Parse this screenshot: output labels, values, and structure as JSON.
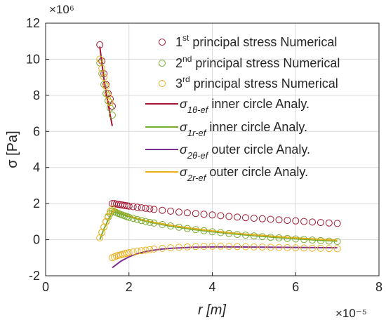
{
  "chart_data": {
    "type": "scatter",
    "xlabel": "r [m]",
    "ylabel": "σ [Pa]",
    "x_exponent_label": "×10⁻⁵",
    "y_exponent_label": "×10⁶",
    "xlim": [
      0,
      8
    ],
    "ylim": [
      -2,
      12
    ],
    "x_ticks": [
      "0",
      "2",
      "4",
      "6",
      "8"
    ],
    "y_ticks": [
      "-2",
      "0",
      "2",
      "4",
      "6",
      "8",
      "10",
      "12"
    ],
    "grid": true,
    "legend_position": "top-right",
    "series": [
      {
        "name": "1st principal stress Numerical",
        "legend": {
          "pre": "1",
          "sup": "st",
          "post": " principal stress Numerical"
        },
        "kind": "markers",
        "color": "#a2142f",
        "x": [
          1.3,
          1.35,
          1.4,
          1.45,
          1.5,
          1.55,
          1.6,
          1.6,
          1.65,
          1.7,
          1.75,
          1.8,
          1.85,
          1.9,
          1.95,
          2.0,
          2.1,
          2.2,
          2.3,
          2.4,
          2.5,
          2.6,
          2.8,
          3.0,
          3.2,
          3.4,
          3.6,
          3.8,
          4.0,
          4.2,
          4.4,
          4.6,
          4.8,
          5.0,
          5.2,
          5.4,
          5.6,
          5.8,
          6.0,
          6.2,
          6.4,
          6.6,
          6.8,
          7.0
        ],
        "y": [
          10.8,
          9.9,
          9.2,
          8.6,
          8.1,
          7.8,
          7.4,
          2.0,
          2.0,
          1.98,
          1.96,
          1.94,
          1.92,
          1.9,
          1.88,
          1.86,
          1.83,
          1.8,
          1.77,
          1.74,
          1.71,
          1.68,
          1.63,
          1.58,
          1.53,
          1.49,
          1.45,
          1.41,
          1.37,
          1.33,
          1.29,
          1.25,
          1.22,
          1.19,
          1.16,
          1.13,
          1.1,
          1.07,
          1.04,
          1.01,
          0.98,
          0.95,
          0.93,
          0.9
        ]
      },
      {
        "name": "2nd principal stress Numerical",
        "legend": {
          "pre": "2",
          "sup": "nd",
          "post": " principal stress  Numerical"
        },
        "kind": "markers",
        "color": "#77ac30",
        "x": [
          1.3,
          1.35,
          1.4,
          1.45,
          1.5,
          1.55,
          1.6,
          1.35,
          1.4,
          1.45,
          1.5,
          1.55,
          1.6,
          1.65,
          1.7,
          1.75,
          1.8,
          1.85,
          1.9,
          1.95,
          2.0,
          2.1,
          2.2,
          2.3,
          2.4,
          2.5,
          2.6,
          2.8,
          3.0,
          3.2,
          3.4,
          3.6,
          3.8,
          4.0,
          4.2,
          4.4,
          4.6,
          4.8,
          5.0,
          5.2,
          5.4,
          5.6,
          5.8,
          6.0,
          6.2,
          6.4,
          6.6,
          6.8,
          7.0
        ],
        "y": [
          9.8,
          9.2,
          8.6,
          8.1,
          7.7,
          7.3,
          6.9,
          0.4,
          0.7,
          1.0,
          1.25,
          1.45,
          1.6,
          1.55,
          1.5,
          1.45,
          1.4,
          1.36,
          1.32,
          1.28,
          1.24,
          1.18,
          1.12,
          1.06,
          1.01,
          0.96,
          0.92,
          0.84,
          0.76,
          0.69,
          0.62,
          0.56,
          0.5,
          0.44,
          0.39,
          0.34,
          0.29,
          0.25,
          0.21,
          0.17,
          0.13,
          0.1,
          0.07,
          0.04,
          0.01,
          -0.02,
          -0.05,
          -0.08,
          -0.1
        ]
      },
      {
        "name": "3rd principal stress Numerical",
        "legend": {
          "pre": "3",
          "sup": "rd",
          "post": " principal stress  Numerical"
        },
        "kind": "markers",
        "color": "#edb120",
        "x": [
          1.3,
          1.35,
          1.4,
          1.45,
          1.5,
          1.55,
          1.3,
          1.35,
          1.4,
          1.45,
          1.5,
          1.55,
          1.6,
          1.6,
          1.65,
          1.7,
          1.75,
          1.8,
          1.85,
          1.9,
          1.95,
          2.0,
          2.1,
          2.2,
          2.3,
          2.4,
          2.5,
          2.6,
          2.8,
          3.0,
          3.2,
          3.4,
          3.6,
          3.8,
          4.0,
          4.2,
          4.4,
          4.6,
          4.8,
          5.0,
          5.2,
          5.4,
          5.6,
          5.8,
          6.0,
          6.2,
          6.4,
          6.6,
          6.8,
          7.0
        ],
        "y": [
          10.0,
          9.5,
          9.0,
          8.5,
          8.0,
          7.6,
          0.1,
          0.4,
          0.7,
          1.0,
          1.3,
          1.55,
          1.7,
          -1.0,
          -0.95,
          -0.9,
          -0.87,
          -0.84,
          -0.81,
          -0.78,
          -0.75,
          -0.72,
          -0.68,
          -0.64,
          -0.61,
          -0.58,
          -0.55,
          -0.52,
          -0.48,
          -0.45,
          -0.42,
          -0.4,
          -0.38,
          -0.37,
          -0.36,
          -0.36,
          -0.37,
          -0.38,
          -0.39,
          -0.4,
          -0.41,
          -0.42,
          -0.43,
          -0.44,
          -0.45,
          -0.46,
          -0.47,
          -0.48,
          -0.49,
          -0.5
        ]
      },
      {
        "name": "σ1θ-ef inner circle Analy.",
        "legend": {
          "pre": "σ",
          "sub": "1θ-ef",
          "post": " inner circle Analy."
        },
        "kind": "line",
        "color": "#a2142f",
        "x": [
          1.3,
          1.4,
          1.5,
          1.6
        ],
        "y": [
          10.7,
          8.9,
          7.5,
          6.3
        ]
      },
      {
        "name": "σ1r-ef inner circle Analy.",
        "legend": {
          "pre": "σ",
          "sub": "1r-ef",
          "post": " inner circle Analy."
        },
        "kind": "line",
        "color": "#77ac30",
        "x": [
          1.3,
          1.4,
          1.5,
          1.6,
          1.7,
          1.8,
          1.9,
          2.0,
          2.2,
          2.4,
          2.6,
          2.8,
          3.0,
          3.5,
          4.0,
          4.5,
          5.0,
          5.5,
          6.0,
          6.5,
          7.0
        ],
        "y": [
          0.0,
          0.6,
          1.1,
          1.55,
          1.5,
          1.42,
          1.35,
          1.28,
          1.14,
          1.02,
          0.92,
          0.83,
          0.75,
          0.58,
          0.44,
          0.32,
          0.22,
          0.13,
          0.05,
          -0.02,
          -0.08
        ]
      },
      {
        "name": "σ2θ-ef outer circle Analy.",
        "legend": {
          "pre": "σ",
          "sub": "2θ-ef",
          "post": " outer circle Analy."
        },
        "kind": "line",
        "color": "#7e2f8e",
        "x": [
          1.6,
          1.8,
          2.0,
          2.2,
          2.4,
          2.6,
          2.8,
          3.0,
          3.5,
          4.0,
          4.5,
          5.0,
          5.5,
          6.0,
          6.5,
          7.0
        ],
        "y": [
          -1.55,
          -1.2,
          -0.95,
          -0.78,
          -0.66,
          -0.58,
          -0.52,
          -0.48,
          -0.42,
          -0.4,
          -0.4,
          -0.41,
          -0.42,
          -0.43,
          -0.44,
          -0.45
        ]
      },
      {
        "name": "σ2r-ef outer circle Analy.",
        "legend": {
          "pre": "σ",
          "sub": "2r-ef",
          "post": " outer circle Analy."
        },
        "kind": "line",
        "color": "#edb120",
        "x": [
          1.6,
          1.8,
          2.0,
          2.2,
          2.4,
          2.6,
          2.8,
          3.0,
          3.5,
          4.0,
          4.5,
          5.0,
          5.5,
          6.0,
          6.5,
          7.0
        ],
        "y": [
          1.7,
          1.5,
          1.32,
          1.18,
          1.06,
          0.96,
          0.88,
          0.8,
          0.63,
          0.49,
          0.37,
          0.27,
          0.18,
          0.1,
          0.03,
          -0.03
        ]
      }
    ]
  }
}
